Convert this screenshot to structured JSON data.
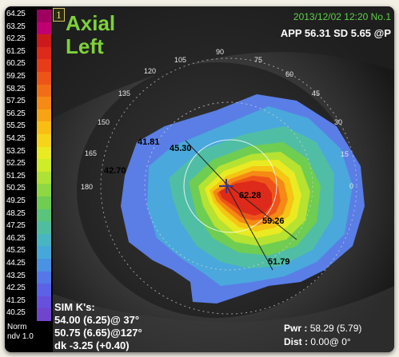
{
  "scale": {
    "labels": [
      "64.25",
      "63.25",
      "62.25",
      "61.25",
      "60.25",
      "59.25",
      "58.25",
      "57.25",
      "56.25",
      "55.25",
      "54.25",
      "53.25",
      "52.25",
      "51.25",
      "50.25",
      "49.25",
      "48.25",
      "47.25",
      "46.25",
      "45.25",
      "44.25",
      "43.25",
      "42.25",
      "41.25",
      "40.25"
    ],
    "colors": [
      "#a00060",
      "#c00070",
      "#cc1a1a",
      "#dd2a1a",
      "#e83c18",
      "#ee5418",
      "#f26e16",
      "#f58a14",
      "#f7a414",
      "#f9be14",
      "#f6d41a",
      "#eaea22",
      "#cfec28",
      "#aee234",
      "#8ed842",
      "#6fcd52",
      "#5ac47a",
      "#4fbea0",
      "#48b6c2",
      "#46a8d8",
      "#4a92e2",
      "#5478e8",
      "#5c62e6",
      "#6650dc",
      "#7044cc"
    ],
    "footer_norm": "Norm",
    "footer_ndv": "ndv 1.0"
  },
  "header": {
    "map_number": "1",
    "title_line1": "Axial",
    "title_line2": "Left",
    "datetime": "2013/12/02 12:20 No.1",
    "app_sd": "APP 56.31 SD 5.65  @P"
  },
  "axis_labels": [
    "90",
    "75",
    "60",
    "45",
    "30",
    "15",
    "0",
    "105",
    "120",
    "135",
    "150",
    "165",
    "180"
  ],
  "map_values": [
    "41.81",
    "45.30",
    "42.70",
    "62.28",
    "59.26",
    "51.79"
  ],
  "sim_k": {
    "title": "SIM K's:",
    "k1": "54.00 (6.25)@ 37°",
    "k2": "50.75 (6.65)@127°",
    "dk": "dk -3.25 (+0.40)"
  },
  "info": {
    "pwr_label": "Pwr :",
    "pwr_value": "58.29 (5.79)",
    "dist_label": "Dist :",
    "dist_value": "0.00@ 0°"
  }
}
